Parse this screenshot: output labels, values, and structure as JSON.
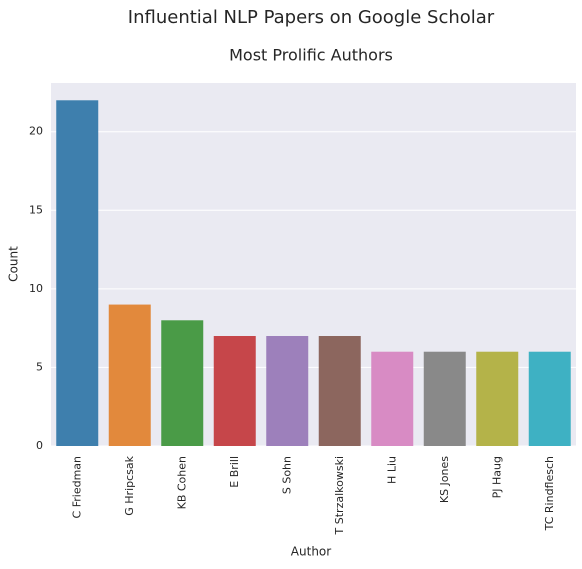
{
  "chart_data": {
    "type": "bar",
    "title": "Influential NLP Papers on Google Scholar",
    "subtitle": "Most Prolific Authors",
    "x_label": "Author",
    "y_label": "Count",
    "categories": [
      "C Friedman",
      "G Hripcsak",
      "KB Cohen",
      "E Brill",
      "S Sohn",
      "T Strzalkowski",
      "H Liu",
      "KS Jones",
      "PJ Haug",
      "TC Rindflesch"
    ],
    "values": [
      22,
      9,
      8,
      7,
      7,
      7,
      6,
      6,
      6,
      6
    ],
    "colors": [
      "#3e7fad",
      "#e2893c",
      "#4a9b47",
      "#c6464a",
      "#9d80bb",
      "#8c665e",
      "#d88bc4",
      "#898989",
      "#b4b349",
      "#3eb1c3"
    ],
    "ylim": [
      0,
      23.1
    ],
    "yticks": [
      0,
      5,
      10,
      15,
      20
    ],
    "grid": true
  }
}
